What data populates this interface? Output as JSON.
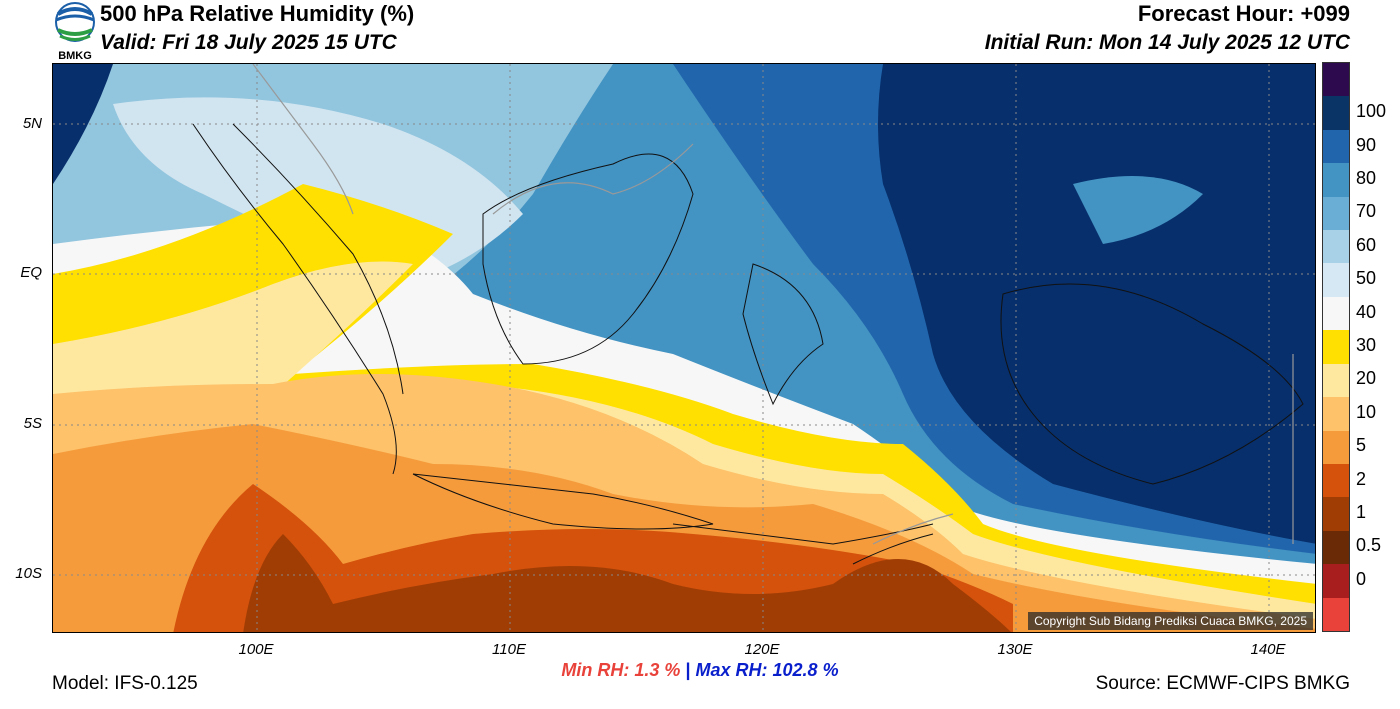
{
  "header": {
    "title": "500 hPa Relative Humidity (%)",
    "valid": "Valid: Fri 18 July 2025 15 UTC",
    "forecast_hour": "Forecast Hour: +099",
    "initial_run": "Initial Run: Mon 14 July 2025 12 UTC",
    "logo_text": "BMKG"
  },
  "map": {
    "lat_labels": [
      "5N",
      "EQ",
      "5S",
      "10S"
    ],
    "lon_labels": [
      "100E",
      "110E",
      "120E",
      "130E",
      "140E"
    ],
    "copyright": "Copyright Sub Bidang Prediksi Cuaca BMKG, 2025",
    "colors": {
      "very_wet": "#072F6B",
      "wet": "#2166AC",
      "moist": "#4393C3",
      "mid": "#92C5DE",
      "light": "#D1E5F0",
      "neutral": "#F7F7F7",
      "yellow": "#FFE000",
      "pale": "#FEE8A0",
      "tan": "#FDC26A",
      "orange": "#F59B3C",
      "dark_orange": "#D4520C",
      "brown": "#A03D05"
    }
  },
  "colorbar": {
    "labels": [
      "100",
      "90",
      "80",
      "70",
      "60",
      "50",
      "40",
      "30",
      "20",
      "10",
      "5",
      "2",
      "1",
      "0.5",
      "0"
    ],
    "colors": [
      "#2D0A4E",
      "#0A3366",
      "#2166AC",
      "#4393C3",
      "#6AAED6",
      "#A8D0E6",
      "#D6E8F3",
      "#F7F7F7",
      "#FFE000",
      "#FEE8A0",
      "#FDC26A",
      "#F59B3C",
      "#D4520C",
      "#A03D05",
      "#6B2A06",
      "#A81E1E",
      "#E8423A"
    ]
  },
  "stats": {
    "min_label": "Min RH:",
    "min_value": "1.3 %",
    "sep": "|",
    "max_label": "Max RH: 102.8 %"
  },
  "footer": {
    "model": "Model: IFS-0.125",
    "source": "Source: ECMWF-CIPS BMKG"
  }
}
